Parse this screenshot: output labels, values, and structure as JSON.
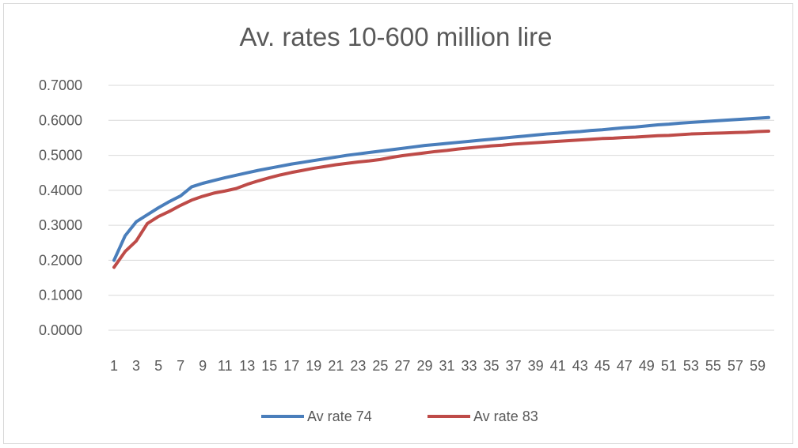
{
  "chart_data": {
    "type": "line",
    "title": "Av. rates 10-600 million lire",
    "xlabel": "",
    "ylabel": "",
    "ylim": [
      0,
      0.7
    ],
    "yticks": [
      "0.0000",
      "0.1000",
      "0.2000",
      "0.3000",
      "0.4000",
      "0.5000",
      "0.6000",
      "0.7000"
    ],
    "xticks": [
      "1",
      "3",
      "5",
      "7",
      "9",
      "11",
      "13",
      "15",
      "17",
      "19",
      "21",
      "23",
      "25",
      "27",
      "29",
      "31",
      "33",
      "35",
      "37",
      "39",
      "41",
      "43",
      "45",
      "47",
      "49",
      "51",
      "53",
      "55",
      "57",
      "59"
    ],
    "grid": true,
    "legend_position": "bottom",
    "x": [
      1,
      2,
      3,
      4,
      5,
      6,
      7,
      8,
      9,
      10,
      11,
      12,
      13,
      14,
      15,
      16,
      17,
      18,
      19,
      20,
      21,
      22,
      23,
      24,
      25,
      26,
      27,
      28,
      29,
      30,
      31,
      32,
      33,
      34,
      35,
      36,
      37,
      38,
      39,
      40,
      41,
      42,
      43,
      44,
      45,
      46,
      47,
      48,
      49,
      50,
      51,
      52,
      53,
      54,
      55,
      56,
      57,
      58,
      59,
      60
    ],
    "series": [
      {
        "name": "Av rate 74",
        "color": "#4a7ebb",
        "values": [
          0.2,
          0.27,
          0.31,
          0.33,
          0.35,
          0.368,
          0.384,
          0.41,
          0.42,
          0.428,
          0.436,
          0.443,
          0.45,
          0.457,
          0.463,
          0.469,
          0.475,
          0.48,
          0.485,
          0.49,
          0.495,
          0.5,
          0.504,
          0.508,
          0.512,
          0.516,
          0.52,
          0.524,
          0.528,
          0.531,
          0.534,
          0.537,
          0.54,
          0.543,
          0.546,
          0.549,
          0.552,
          0.555,
          0.558,
          0.561,
          0.563,
          0.566,
          0.568,
          0.571,
          0.573,
          0.576,
          0.579,
          0.581,
          0.584,
          0.587,
          0.589,
          0.592,
          0.594,
          0.596,
          0.598,
          0.6,
          0.602,
          0.604,
          0.606,
          0.608
        ]
      },
      {
        "name": "Av rate 83",
        "color": "#be4b48",
        "values": [
          0.18,
          0.225,
          0.255,
          0.305,
          0.325,
          0.34,
          0.357,
          0.372,
          0.383,
          0.392,
          0.398,
          0.405,
          0.417,
          0.427,
          0.436,
          0.444,
          0.451,
          0.457,
          0.463,
          0.468,
          0.473,
          0.477,
          0.481,
          0.484,
          0.488,
          0.494,
          0.499,
          0.503,
          0.507,
          0.511,
          0.514,
          0.518,
          0.521,
          0.524,
          0.527,
          0.529,
          0.532,
          0.534,
          0.536,
          0.538,
          0.54,
          0.542,
          0.544,
          0.546,
          0.548,
          0.549,
          0.551,
          0.552,
          0.554,
          0.556,
          0.557,
          0.559,
          0.561,
          0.562,
          0.563,
          0.564,
          0.565,
          0.566,
          0.568,
          0.569
        ]
      }
    ]
  }
}
